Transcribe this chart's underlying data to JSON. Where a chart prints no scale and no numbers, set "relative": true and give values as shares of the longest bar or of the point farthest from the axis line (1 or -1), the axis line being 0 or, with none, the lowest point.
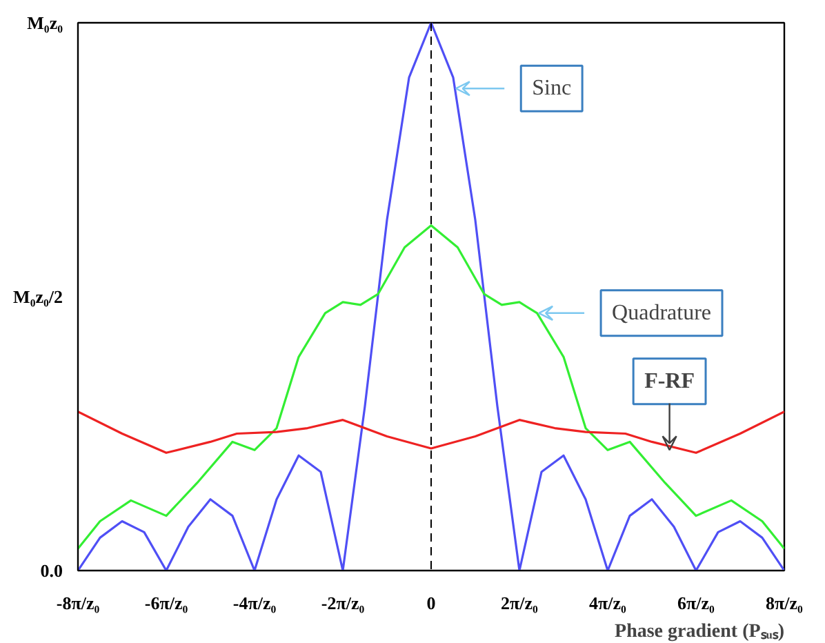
{
  "chart_data": {
    "type": "line",
    "xlabel": "Phase gradient (Pₛᵤₛ)",
    "xlim": [
      -8,
      8
    ],
    "xticks": [
      {
        "value": -8,
        "label": "-8π/z₀"
      },
      {
        "value": -6,
        "label": "-6π/z₀"
      },
      {
        "value": -4,
        "label": "-4π/z₀"
      },
      {
        "value": -2,
        "label": "-2π/z₀"
      },
      0,
      {
        "value": 2,
        "label": "2π/z₀"
      },
      {
        "value": 4,
        "label": "4π/z₀"
      },
      {
        "value": 6,
        "label": "6π/z₀"
      },
      {
        "value": 8,
        "label": "8π/z₀"
      }
    ],
    "relative": true,
    "series": [
      {
        "color": "#4f4ff5",
        "x": [
          -8,
          -7.5,
          -7,
          -6.5,
          -6,
          -5.5,
          -5,
          -4.5,
          -4,
          -3.5,
          -3,
          -2.5,
          -2,
          -1.5,
          -1,
          -0.5,
          0,
          0.5,
          1,
          1.5,
          2,
          2.5,
          3,
          3.5,
          4,
          4.5,
          5,
          5.5,
          6,
          6.5,
          7,
          7.5,
          8
        ],
        "values": [
          0,
          0.06,
          0.09,
          0.07,
          0,
          0.08,
          0.13,
          0.1,
          0,
          0.13,
          0.21,
          0.18,
          0,
          0.3,
          0.64,
          0.9,
          1,
          0.9,
          0.64,
          0.3,
          0,
          0.18,
          0.21,
          0.13,
          0,
          0.1,
          0.13,
          0.08,
          0,
          0.07,
          0.09,
          0.06,
          0
        ]
      },
      {
        "color": "#33ee33",
        "x": [
          -8,
          -7.5,
          -6.8,
          -6,
          -5.3,
          -4.5,
          -4,
          -3.5,
          -3,
          -2.4,
          -2,
          -1.6,
          -1.2,
          -0.6,
          0,
          0.6,
          1.2,
          1.6,
          2,
          2.4,
          3,
          3.5,
          4,
          4.5,
          5.3,
          6,
          6.8,
          7.5,
          8
        ],
        "values": [
          0.04,
          0.09,
          0.128,
          0.1,
          0.16,
          0.235,
          0.22,
          0.26,
          0.39,
          0.47,
          0.49,
          0.485,
          0.505,
          0.59,
          0.63,
          0.59,
          0.505,
          0.485,
          0.49,
          0.47,
          0.39,
          0.26,
          0.22,
          0.235,
          0.16,
          0.1,
          0.128,
          0.09,
          0.04
        ]
      },
      {
        "color": "#ee2222",
        "x": [
          -8,
          -7,
          -6,
          -5,
          -4.4,
          -3.5,
          -2.8,
          -2,
          -1,
          0,
          1,
          2,
          2.8,
          3.5,
          4.4,
          5,
          6,
          7,
          8
        ],
        "values": [
          0.29,
          0.25,
          0.215,
          0.235,
          0.25,
          0.253,
          0.26,
          0.275,
          0.245,
          0.223,
          0.245,
          0.275,
          0.26,
          0.253,
          0.25,
          0.235,
          0.215,
          0.25,
          0.29
        ]
      }
    ],
    "ref_lines": [
      {
        "axis": "x",
        "value": 0,
        "color": "#000000",
        "line_style": "dashed"
      }
    ],
    "annotations": [
      {
        "text": "Sinc",
        "x": 0.56,
        "y": 0.88
      },
      {
        "text": "Quadrature",
        "x": 2.44,
        "y": 0.47
      },
      {
        "text": "F-RF",
        "x": 5.4,
        "y": 0.22
      },
      "0.0",
      "M₀z₀/2",
      "M₀z₀"
    ],
    "grid": false,
    "marker": "none",
    "line_style": "solid"
  }
}
